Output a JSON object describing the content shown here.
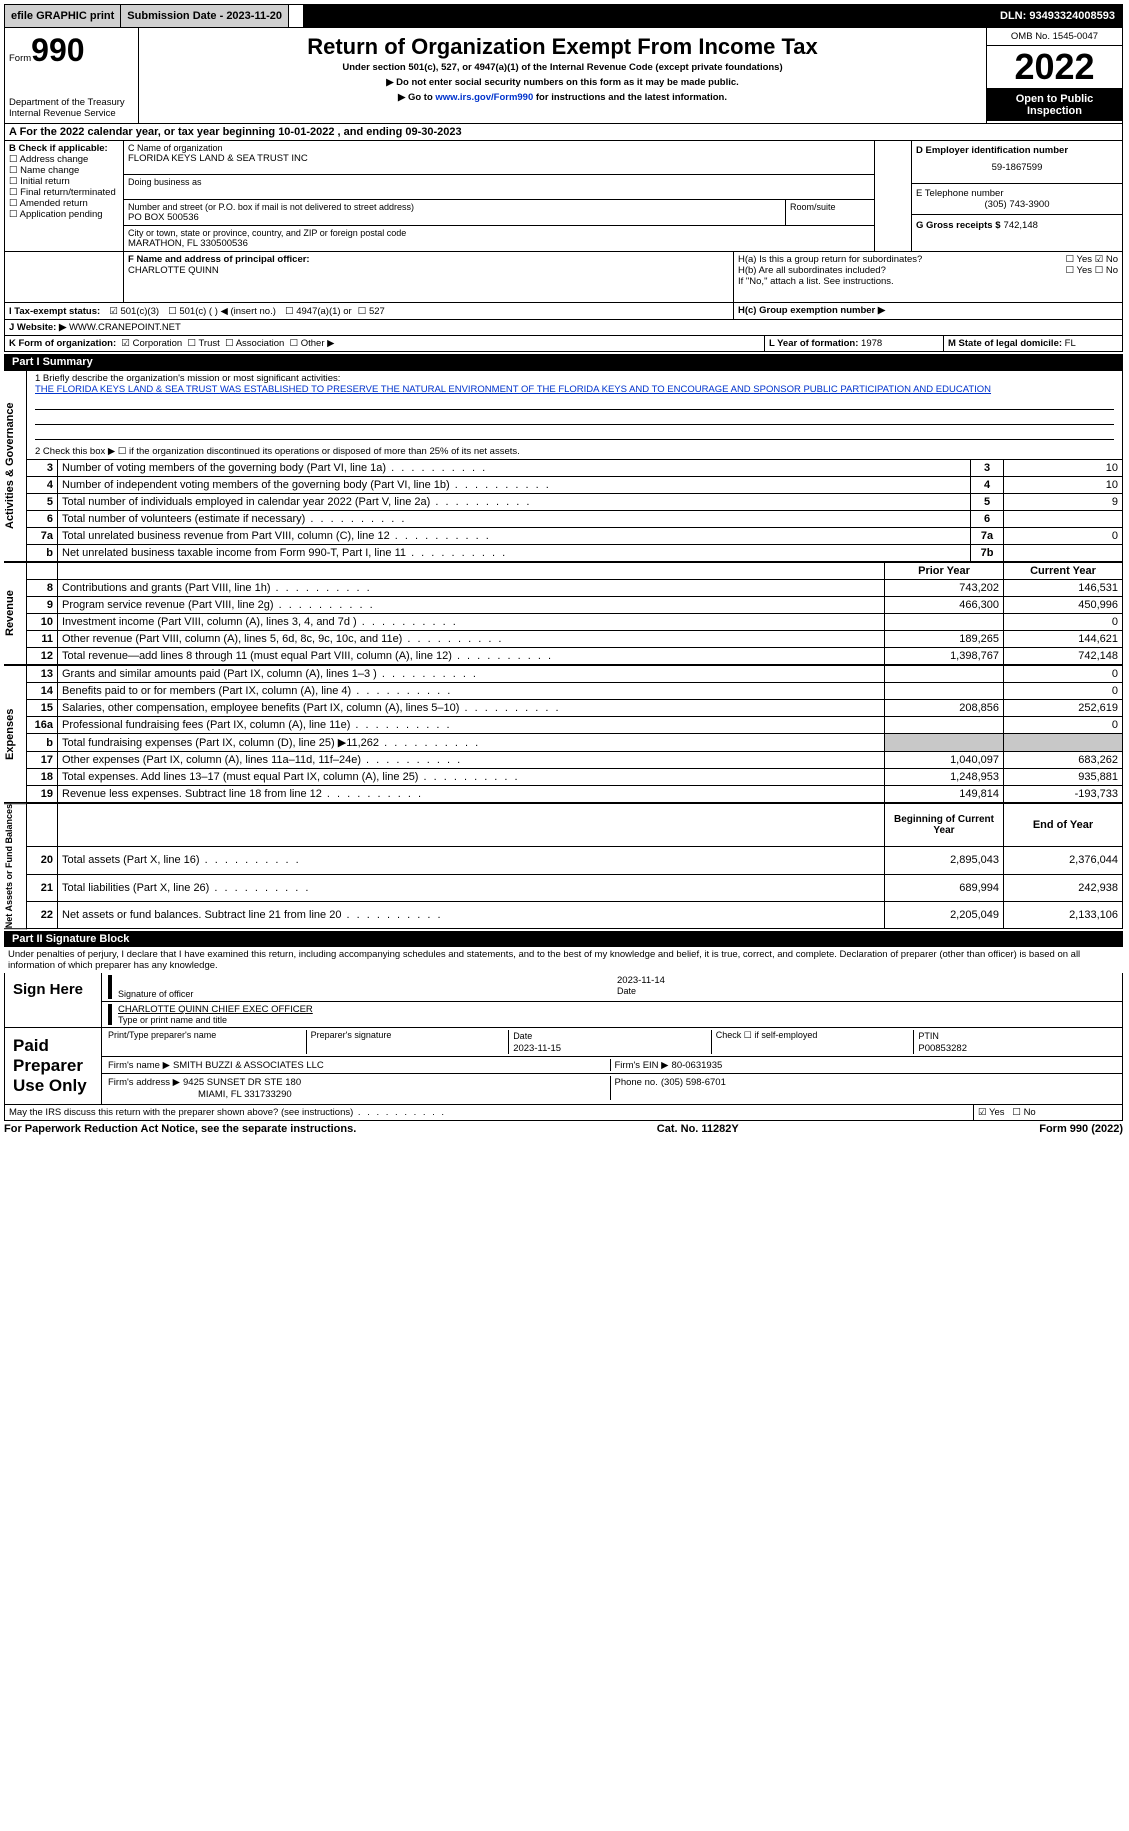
{
  "colors": {
    "accent_blue": "#0033cc",
    "black": "#000000",
    "gray_btn": "#d0d0d0",
    "gray_cell": "#c8c8c8"
  },
  "topbar": {
    "efile": "efile GRAPHIC print",
    "submission": "Submission Date - 2023-11-20",
    "dln": "DLN: 93493324008593"
  },
  "header": {
    "form_small": "Form",
    "form_big": "990",
    "dept": "Department of the Treasury",
    "irs": "Internal Revenue Service",
    "title": "Return of Organization Exempt From Income Tax",
    "sub1": "Under section 501(c), 527, or 4947(a)(1) of the Internal Revenue Code (except private foundations)",
    "sub2": "▶ Do not enter social security numbers on this form as it may be made public.",
    "sub3_pre": "▶ Go to ",
    "sub3_link": "www.irs.gov/Form990",
    "sub3_post": " for instructions and the latest information.",
    "omb": "OMB No. 1545-0047",
    "year": "2022",
    "open": "Open to Public Inspection"
  },
  "lineA": "A For the 2022 calendar year, or tax year beginning 10-01-2022    , and ending 09-30-2023",
  "boxB": {
    "hdr": "B Check if applicable:",
    "items": [
      "Address change",
      "Name change",
      "Initial return",
      "Final return/terminated",
      "Amended return",
      "Application pending"
    ]
  },
  "boxC": {
    "name_lbl": "C Name of organization",
    "name": "FLORIDA KEYS LAND & SEA TRUST INC",
    "dba_lbl": "Doing business as",
    "street_lbl": "Number and street (or P.O. box if mail is not delivered to street address)",
    "street": "PO BOX 500536",
    "room_lbl": "Room/suite",
    "city_lbl": "City or town, state or province, country, and ZIP or foreign postal code",
    "city": "MARATHON, FL  330500536"
  },
  "boxD": {
    "lbl": "D Employer identification number",
    "val": "59-1867599"
  },
  "boxE": {
    "lbl": "E Telephone number",
    "val": "(305) 743-3900"
  },
  "boxG": {
    "lbl": "G Gross receipts $",
    "val": "742,148"
  },
  "boxF": {
    "lbl": "F  Name and address of principal officer:",
    "val": "CHARLOTTE QUINN"
  },
  "boxH": {
    "a": "H(a)  Is this a group return for subordinates?",
    "b": "H(b)  Are all subordinates included?",
    "note": "If \"No,\" attach a list. See instructions.",
    "c": "H(c)  Group exemption number ▶",
    "yes": "Yes",
    "no": "No"
  },
  "lineI": {
    "lbl": "I    Tax-exempt status:",
    "opts": [
      "501(c)(3)",
      "501(c) (  ) ◀ (insert no.)",
      "4947(a)(1) or",
      "527"
    ]
  },
  "lineJ": {
    "lbl": "J   Website: ▶",
    "val": " WWW.CRANEPOINT.NET"
  },
  "lineK": {
    "lbl": "K Form of organization:",
    "opts": [
      "Corporation",
      "Trust",
      "Association",
      "Other ▶"
    ]
  },
  "lineL": {
    "lbl": "L Year of formation:",
    "val": "1978"
  },
  "lineM": {
    "lbl": "M State of legal domicile:",
    "val": "FL"
  },
  "part1": {
    "title": "Part I     Summary",
    "q1a": "1   Briefly describe the organization's mission or most significant activities:",
    "q1b": "THE FLORIDA KEYS LAND & SEA TRUST WAS ESTABLISHED TO PRESERVE THE NATURAL ENVIRONMENT OF THE FLORIDA KEYS AND TO ENCOURAGE AND SPONSOR PUBLIC PARTICIPATION AND EDUCATION",
    "q2": "2    Check this box ▶ ☐  if the organization discontinued its operations or disposed of more than 25% of its net assets.",
    "sideA": "Activities & Governance",
    "sideR": "Revenue",
    "sideE": "Expenses",
    "sideN": "Net Assets or Fund Balances",
    "hdr_prior": "Prior Year",
    "hdr_curr": "Current Year",
    "hdr_begin": "Beginning of Current Year",
    "hdr_end": "End of Year",
    "rows_top": [
      {
        "n": "3",
        "d": "Number of voting members of the governing body (Part VI, line 1a)",
        "b": "3",
        "v": "10"
      },
      {
        "n": "4",
        "d": "Number of independent voting members of the governing body (Part VI, line 1b)",
        "b": "4",
        "v": "10"
      },
      {
        "n": "5",
        "d": "Total number of individuals employed in calendar year 2022 (Part V, line 2a)",
        "b": "5",
        "v": "9"
      },
      {
        "n": "6",
        "d": "Total number of volunteers (estimate if necessary)",
        "b": "6",
        "v": ""
      },
      {
        "n": "7a",
        "d": "Total unrelated business revenue from Part VIII, column (C), line 12",
        "b": "7a",
        "v": "0"
      },
      {
        "n": "b",
        "d": "Net unrelated business taxable income from Form 990-T, Part I, line 11",
        "b": "7b",
        "v": ""
      }
    ],
    "rows_rev": [
      {
        "n": "8",
        "d": "Contributions and grants (Part VIII, line 1h)",
        "p": "743,202",
        "c": "146,531"
      },
      {
        "n": "9",
        "d": "Program service revenue (Part VIII, line 2g)",
        "p": "466,300",
        "c": "450,996"
      },
      {
        "n": "10",
        "d": "Investment income (Part VIII, column (A), lines 3, 4, and 7d )",
        "p": "",
        "c": "0"
      },
      {
        "n": "11",
        "d": "Other revenue (Part VIII, column (A), lines 5, 6d, 8c, 9c, 10c, and 11e)",
        "p": "189,265",
        "c": "144,621"
      },
      {
        "n": "12",
        "d": "Total revenue—add lines 8 through 11 (must equal Part VIII, column (A), line 12)",
        "p": "1,398,767",
        "c": "742,148"
      }
    ],
    "rows_exp": [
      {
        "n": "13",
        "d": "Grants and similar amounts paid (Part IX, column (A), lines 1–3 )",
        "p": "",
        "c": "0"
      },
      {
        "n": "14",
        "d": "Benefits paid to or for members (Part IX, column (A), line 4)",
        "p": "",
        "c": "0"
      },
      {
        "n": "15",
        "d": "Salaries, other compensation, employee benefits (Part IX, column (A), lines 5–10)",
        "p": "208,856",
        "c": "252,619"
      },
      {
        "n": "16a",
        "d": "Professional fundraising fees (Part IX, column (A), line 11e)",
        "p": "",
        "c": "0"
      },
      {
        "n": "b",
        "d": "Total fundraising expenses (Part IX, column (D), line 25) ▶11,262",
        "p": "GRAY",
        "c": "GRAY"
      },
      {
        "n": "17",
        "d": "Other expenses (Part IX, column (A), lines 11a–11d, 11f–24e)",
        "p": "1,040,097",
        "c": "683,262"
      },
      {
        "n": "18",
        "d": "Total expenses. Add lines 13–17 (must equal Part IX, column (A), line 25)",
        "p": "1,248,953",
        "c": "935,881"
      },
      {
        "n": "19",
        "d": "Revenue less expenses. Subtract line 18 from line 12",
        "p": "149,814",
        "c": "-193,733"
      }
    ],
    "rows_net": [
      {
        "n": "20",
        "d": "Total assets (Part X, line 16)",
        "p": "2,895,043",
        "c": "2,376,044"
      },
      {
        "n": "21",
        "d": "Total liabilities (Part X, line 26)",
        "p": "689,994",
        "c": "242,938"
      },
      {
        "n": "22",
        "d": "Net assets or fund balances. Subtract line 21 from line 20",
        "p": "2,205,049",
        "c": "2,133,106"
      }
    ]
  },
  "part2": {
    "title": "Part II     Signature Block",
    "decl": "Under penalties of perjury, I declare that I have examined this return, including accompanying schedules and statements, and to the best of my knowledge and belief, it is true, correct, and complete. Declaration of preparer (other than officer) is based on all information of which preparer has any knowledge.",
    "sign_here": "Sign Here",
    "sig_officer": "Signature of officer",
    "sig_date": "2023-11-14",
    "date_lbl": "Date",
    "officer_name": "CHARLOTTE QUINN  CHIEF EXEC OFFICER",
    "type_name": "Type or print name and title",
    "paid": "Paid Preparer Use Only",
    "p_name_lbl": "Print/Type preparer's name",
    "p_sig_lbl": "Preparer's signature",
    "p_date_lbl": "Date",
    "p_date": "2023-11-15",
    "p_check": "Check ☐ if self-employed",
    "ptin_lbl": "PTIN",
    "ptin": "P00853282",
    "firm_name_lbl": "Firm's name      ▶",
    "firm_name": "SMITH BUZZI & ASSOCIATES LLC",
    "firm_ein_lbl": "Firm's EIN ▶",
    "firm_ein": "80-0631935",
    "firm_addr_lbl": "Firm's address ▶",
    "firm_addr1": "9425 SUNSET DR STE 180",
    "firm_addr2": "MIAMI, FL  331733290",
    "phone_lbl": "Phone no.",
    "phone": "(305) 598-6701",
    "discuss": "May the IRS discuss this return with the preparer shown above? (see instructions)",
    "yes": "Yes",
    "no": "No"
  },
  "footer": {
    "left": "For Paperwork Reduction Act Notice, see the separate instructions.",
    "mid": "Cat. No. 11282Y",
    "right": "Form 990 (2022)"
  }
}
